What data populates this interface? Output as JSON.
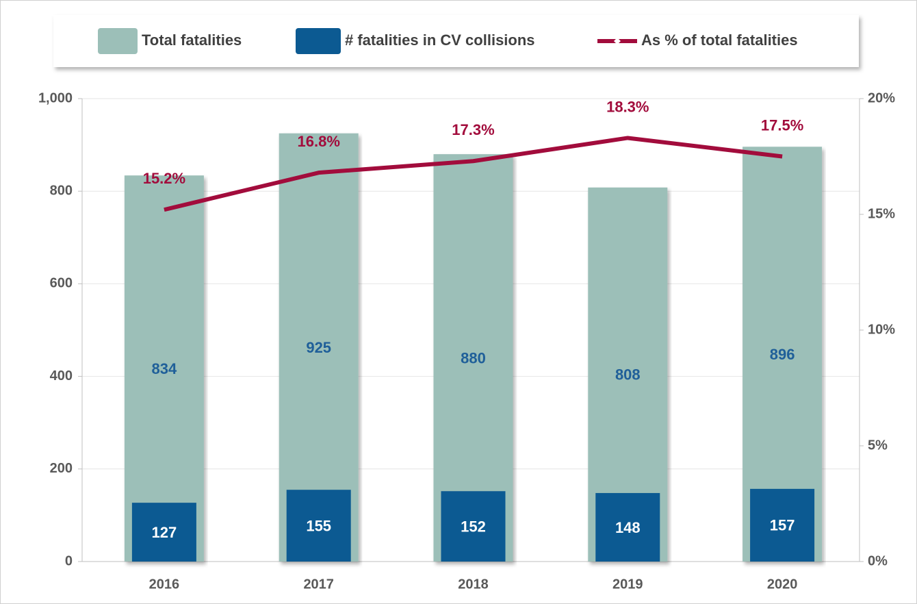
{
  "chart_data": {
    "type": "bar-line",
    "categories": [
      "2016",
      "2017",
      "2018",
      "2019",
      "2020"
    ],
    "series": [
      {
        "name": "Total fatalities",
        "color": "#9cbfb8",
        "values": [
          834,
          925,
          880,
          808,
          896
        ]
      },
      {
        "name": "# fatalities in CV collisions",
        "color": "#0c5a92",
        "values": [
          127,
          155,
          152,
          148,
          157
        ]
      },
      {
        "name": "As % of total fatalities",
        "color": "#a20c3c",
        "axis": "y2",
        "values": [
          15.2,
          16.8,
          17.3,
          18.3,
          17.5
        ],
        "value_labels": [
          "15.2%",
          "16.8%",
          "17.3%",
          "18.3%",
          "17.5%"
        ]
      }
    ],
    "ylim": [
      0,
      1000
    ],
    "yticks": [
      0,
      200,
      400,
      600,
      800,
      {
        "value": 1000,
        "label": "1,000"
      }
    ],
    "y2lim": [
      0,
      20
    ],
    "y2ticks": [
      {
        "value": 0,
        "label": "0%"
      },
      {
        "value": 5,
        "label": "5%"
      },
      {
        "value": 10,
        "label": "10%"
      },
      {
        "value": 15,
        "label": "15%"
      },
      {
        "value": 20,
        "label": "20%"
      }
    ],
    "grid": true,
    "legend": "top"
  }
}
